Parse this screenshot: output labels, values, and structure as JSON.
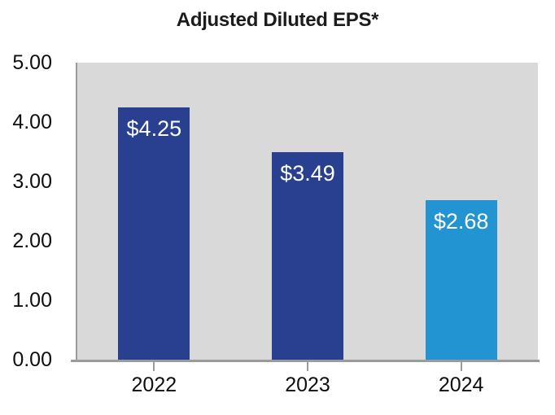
{
  "chart_data": {
    "type": "bar",
    "title": "Adjusted Diluted EPS*",
    "categories": [
      "2022",
      "2023",
      "2024"
    ],
    "values": [
      4.25,
      3.49,
      2.68
    ],
    "data_labels": [
      "$4.25",
      "$3.49",
      "$2.68"
    ],
    "bar_colors": [
      "#28408F",
      "#28408F",
      "#2194D1"
    ],
    "data_label_color": "#FFFFFF",
    "xlabel": "",
    "ylabel": "",
    "ylim": [
      0,
      5
    ],
    "ytick_labels": [
      "0.00",
      "1.00",
      "2.00",
      "3.00",
      "4.00",
      "5.00"
    ],
    "grid": false,
    "legend": "none",
    "plot_background": "#D9D9D9",
    "axis_color": "#9B9B9B"
  }
}
